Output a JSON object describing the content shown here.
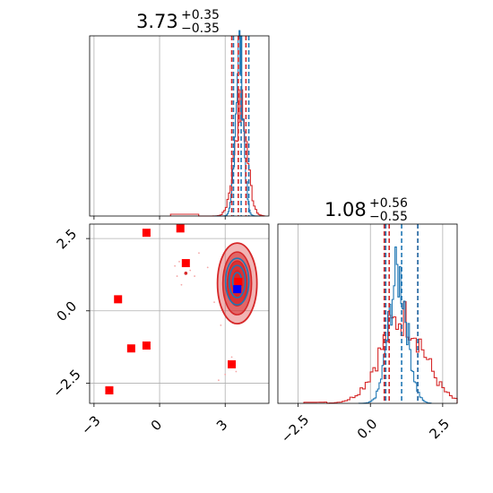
{
  "chart_data": {
    "type": "corner",
    "titles": [
      {
        "value": "3.73",
        "plus": "+0.35",
        "minus": "−0.35"
      },
      {
        "value": "1.08",
        "plus": "+0.56",
        "minus": "−0.55"
      }
    ],
    "x_ticks": {
      "param0": [
        "−3",
        "0",
        "3"
      ],
      "param1": [
        "−2.5",
        "0.0",
        "2.5"
      ]
    },
    "y_ticks": {
      "param1": [
        "2.5",
        "0.0",
        "−2.5"
      ]
    },
    "ranges": {
      "param0": [
        -3.2,
        5.0
      ],
      "param1": [
        -3.2,
        3.0
      ]
    },
    "grid": true,
    "colors": {
      "blue": "#1f77b4",
      "red": "#d62728",
      "marker_red": "#ff0000",
      "marker_blue": "#0000ff"
    },
    "quantiles": {
      "blue_param0": [
        3.38,
        3.73,
        4.08
      ],
      "red_param0": [
        3.3,
        3.6,
        3.95
      ],
      "blue_param1": [
        0.53,
        1.08,
        1.64
      ],
      "red_param1": [
        0.48,
        0.65,
        1.64
      ]
    },
    "hist_param0": {
      "blue": {
        "center": 3.65,
        "sigma": 0.18,
        "peak": 0.92
      },
      "red": {
        "center": 3.7,
        "sigma": 0.3,
        "peak": 0.6
      }
    },
    "hist_param1": {
      "blue": {
        "center": 0.95,
        "sigma": 0.32,
        "peak": 0.72
      },
      "red": {
        "center": 1.1,
        "sigma": 0.75,
        "peak": 0.48
      }
    },
    "contour_center": [
      3.55,
      0.95
    ],
    "red_squares": [
      [
        -0.6,
        2.7
      ],
      [
        0.95,
        2.85
      ],
      [
        1.2,
        1.65
      ],
      [
        -1.9,
        0.4
      ],
      [
        -1.3,
        -1.3
      ],
      [
        -0.6,
        -1.2
      ],
      [
        -2.3,
        -2.75
      ],
      [
        3.3,
        -1.85
      ],
      [
        3.6,
        1.0
      ]
    ],
    "blue_square": [
      3.55,
      0.75
    ],
    "scatter_specks": [
      [
        0.7,
        1.55
      ],
      [
        0.8,
        1.2
      ],
      [
        1.4,
        1.4
      ],
      [
        1.0,
        0.9
      ],
      [
        0.9,
        1.7
      ],
      [
        3.3,
        -1.6
      ],
      [
        3.0,
        -2.2
      ],
      [
        2.7,
        -2.4
      ],
      [
        3.5,
        -2.1
      ],
      [
        1.6,
        1.2
      ],
      [
        2.2,
        1.5
      ],
      [
        2.5,
        0.3
      ],
      [
        2.8,
        -0.5
      ],
      [
        1.8,
        2.0
      ]
    ]
  }
}
